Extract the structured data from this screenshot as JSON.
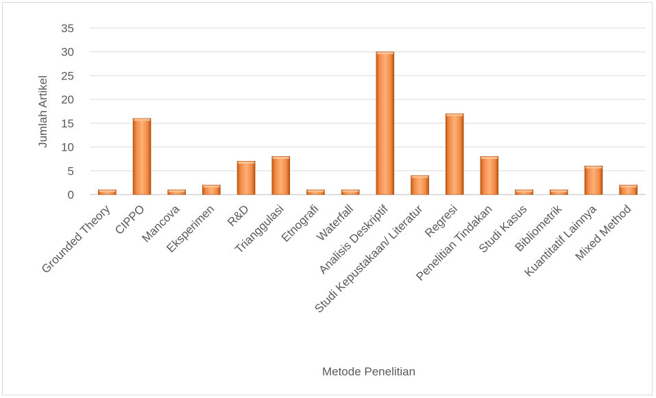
{
  "chart_data": {
    "type": "bar",
    "title": "",
    "xlabel": "Metode Penelitian",
    "ylabel": "Jumlah Artikel",
    "ylim": [
      0,
      35
    ],
    "yticks": [
      "0",
      "5",
      "10",
      "15",
      "20",
      "25",
      "30",
      "35"
    ],
    "grid": true,
    "legend": "none",
    "categories": [
      "Grounded Theory",
      "CIPPO",
      "Mancova",
      "Eksperimen",
      "R&D",
      "Trianggulasi",
      "Etnografi",
      "Waterfall",
      "Analisis Deskriptif",
      "Studi Kepustakaan/ Literatur",
      "Regresi",
      "Penelitian Tindakan",
      "Studi Kasus",
      "Bibliometrik",
      "Kuantitatif Lainnya",
      "Mixed Method"
    ],
    "values": [
      1,
      16,
      1,
      2,
      7,
      8,
      1,
      1,
      30,
      4,
      17,
      8,
      1,
      1,
      6,
      2
    ],
    "colors": {
      "bar_light": "#ffb077",
      "bar_mid": "#f5863a",
      "bar_dark": "#c55a11",
      "grid": "#d9d9d9",
      "text": "#595959"
    }
  }
}
